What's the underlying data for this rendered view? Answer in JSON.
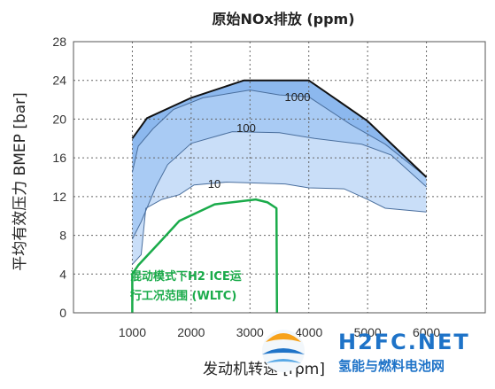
{
  "chart_data": {
    "type": "contour",
    "title": "原始NOx排放 (ppm)",
    "xlabel": "发动机转速 [rpm]",
    "ylabel": "平均有效压力 BMEP [bar]",
    "xlim": [
      0,
      7000
    ],
    "ylim": [
      0,
      28
    ],
    "x_ticks": [
      1000,
      2000,
      3000,
      4000,
      5000,
      6000
    ],
    "y_ticks": [
      0,
      4,
      8,
      12,
      16,
      20,
      24,
      28
    ],
    "grid": true,
    "colors": {
      "band_above_1000": "#8cb8ee",
      "band_100_1000": "#a9cbf4",
      "band_10_100": "#c9def8",
      "band_below_10": "#ffffff",
      "contour_line": "#4a6f9e",
      "boundary": "#111111",
      "annotation": "#1aab4a"
    },
    "max_load_curve": [
      [
        1000,
        18
      ],
      [
        1250,
        20.1
      ],
      [
        2000,
        22.2
      ],
      [
        2900,
        24
      ],
      [
        4000,
        24
      ],
      [
        5000,
        19.8
      ],
      [
        6000,
        14
      ]
    ],
    "contour_lines": [
      {
        "label": "1000",
        "points": [
          [
            1000,
            14.5
          ],
          [
            1100,
            17.2
          ],
          [
            1350,
            19
          ],
          [
            1700,
            21
          ],
          [
            2200,
            22.2
          ],
          [
            3000,
            23
          ],
          [
            3500,
            22.5
          ],
          [
            4000,
            22.3
          ],
          [
            4700,
            19.5
          ],
          [
            5300,
            17.4
          ],
          [
            6000,
            14
          ]
        ]
      },
      {
        "label": "100",
        "points": [
          [
            1000,
            7.6
          ],
          [
            1150,
            9.4
          ],
          [
            1400,
            13
          ],
          [
            1600,
            15.3
          ],
          [
            2000,
            17.5
          ],
          [
            2700,
            18.7
          ],
          [
            3500,
            18.6
          ],
          [
            4100,
            18
          ],
          [
            4900,
            17.4
          ],
          [
            5400,
            16.3
          ],
          [
            6000,
            13
          ]
        ]
      },
      {
        "label": "10",
        "points": [
          [
            1000,
            5
          ],
          [
            1150,
            6
          ],
          [
            1230,
            10.8
          ],
          [
            1500,
            11.7
          ],
          [
            1800,
            12.2
          ],
          [
            2050,
            13.2
          ],
          [
            2600,
            13.5
          ],
          [
            3600,
            13.3
          ],
          [
            4000,
            12.9
          ],
          [
            4600,
            12.8
          ],
          [
            5000,
            11.7
          ],
          [
            5300,
            10.8
          ],
          [
            6000,
            10.4
          ]
        ]
      }
    ],
    "annotation": {
      "text_line1": "混动模式下H2 ICE运",
      "text_line2": "行工况范围 (WLTC)",
      "region": [
        [
          1000,
          0
        ],
        [
          1000,
          4
        ],
        [
          1100,
          4.9
        ],
        [
          1500,
          7.5
        ],
        [
          1800,
          9.5
        ],
        [
          2400,
          11.2
        ],
        [
          3100,
          11.7
        ],
        [
          3300,
          11.4
        ],
        [
          3450,
          10.8
        ],
        [
          3460,
          0
        ]
      ]
    }
  },
  "watermark": {
    "main_text": "H2FC.NET",
    "sub_text": "氢能与燃料电池网"
  }
}
